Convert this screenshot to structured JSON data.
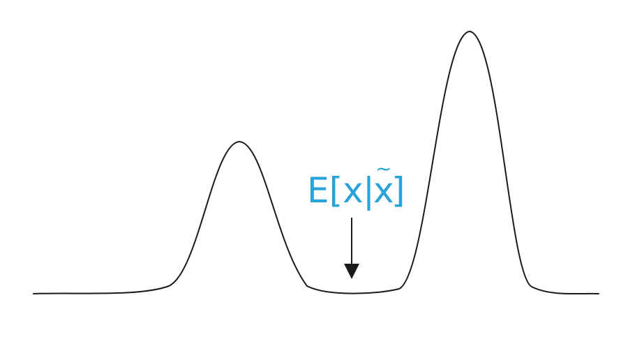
{
  "annotation": {
    "label_prefix": "E[x",
    "label_bar": "|",
    "label_var": "x",
    "label_tilde": "~",
    "label_suffix": "]",
    "color": "#2aa3d8"
  },
  "curve": {
    "color": "#1a1a1a"
  },
  "arrow": {
    "color": "#1a1a1a"
  }
}
